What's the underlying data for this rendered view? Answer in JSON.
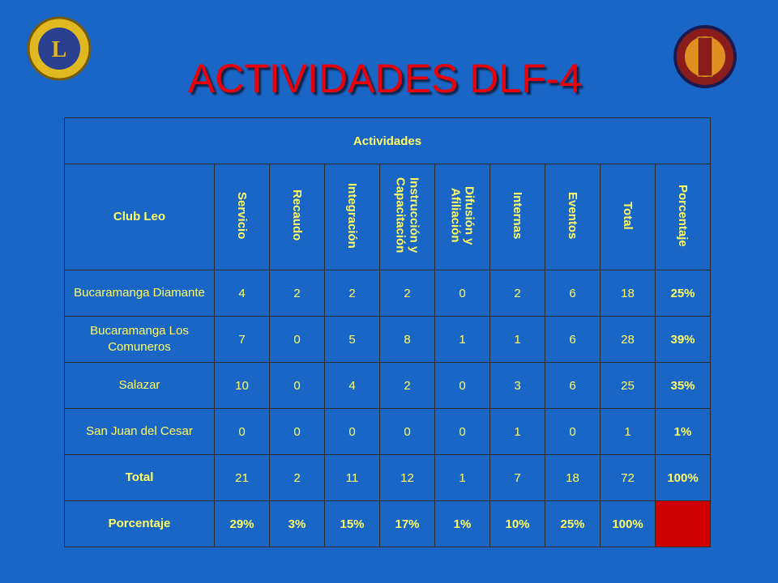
{
  "title": "ACTIVIDADES DLF-4",
  "table": {
    "group_header": "Actividades",
    "row_header": "Club Leo",
    "columns": [
      "Servicio",
      "Recaudo",
      "Integración",
      "Instrucción y Capacitación",
      "Difusión y Afiliación",
      "Internas",
      "Eventos",
      "Total",
      "Porcentaje"
    ],
    "rows": [
      [
        "Bucaramanga Diamante",
        "4",
        "2",
        "2",
        "2",
        "0",
        "2",
        "6",
        "18",
        "25%"
      ],
      [
        "Bucaramanga Los Comuneros",
        "7",
        "0",
        "5",
        "8",
        "1",
        "1",
        "6",
        "28",
        "39%"
      ],
      [
        "Salazar",
        "10",
        "0",
        "4",
        "2",
        "0",
        "3",
        "6",
        "25",
        "35%"
      ],
      [
        "San Juan del Cesar",
        "0",
        "0",
        "0",
        "0",
        "0",
        "1",
        "0",
        "1",
        "1%"
      ],
      [
        "Total",
        "21",
        "2",
        "11",
        "12",
        "1",
        "7",
        "18",
        "72",
        "100%"
      ],
      [
        "Porcentaje",
        "29%",
        "3%",
        "15%",
        "17%",
        "1%",
        "10%",
        "25%",
        "100%"
      ]
    ]
  }
}
